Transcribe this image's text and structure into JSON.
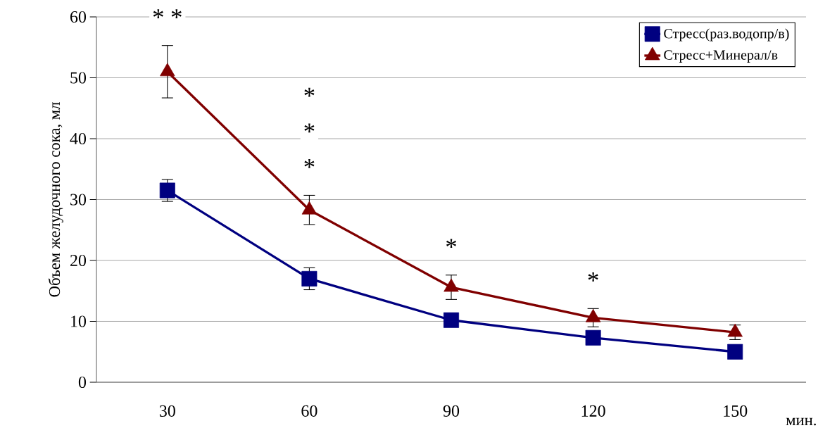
{
  "chart_data": {
    "type": "line",
    "ylabel": "Объем желудочного сока, мл",
    "xlabel": "мин.",
    "categories": [
      "30",
      "60",
      "90",
      "120",
      "150"
    ],
    "series": [
      {
        "name": "Стресс(раз.водопр/в)",
        "color": "#000080",
        "marker": "square",
        "values": [
          31.5,
          17.0,
          10.2,
          7.3,
          5.0
        ],
        "errors": [
          1.8,
          1.8,
          null,
          null,
          null
        ]
      },
      {
        "name": "Стресс+Минерал/в",
        "color": "#800000",
        "marker": "triangle",
        "values": [
          51.0,
          28.3,
          15.6,
          10.6,
          8.2
        ],
        "errors": [
          4.3,
          2.4,
          2.0,
          1.5,
          1.2
        ]
      }
    ],
    "ylim": [
      0,
      60
    ],
    "yticks": [
      0,
      10,
      20,
      30,
      40,
      50,
      60
    ],
    "grid": "y",
    "legend": "top right",
    "annotations": [
      {
        "text": "*   *",
        "x": "30",
        "y": 51.0
      },
      {
        "text": "*",
        "x": "60",
        "y": 28.3
      },
      "*",
      "*",
      {
        "text": "*",
        "x": "90",
        "y": 15.6
      },
      {
        "text": "*",
        "x": "120",
        "y": 10.6
      }
    ]
  }
}
